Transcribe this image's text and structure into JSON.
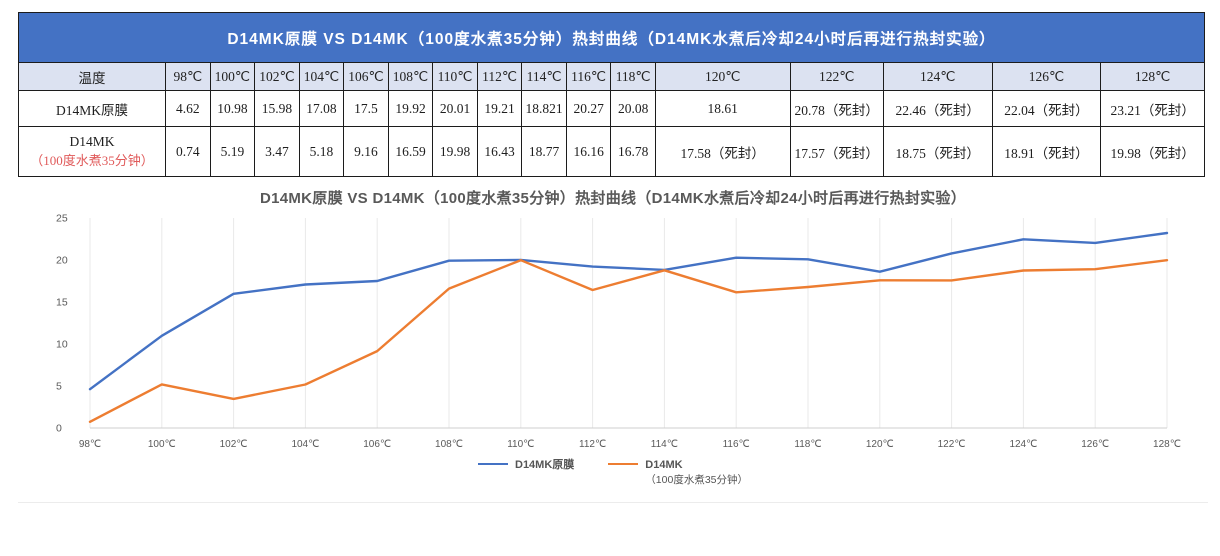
{
  "table": {
    "title": "D14MK原膜 VS D14MK（100度水煮35分钟）热封曲线（D14MK水煮后冷却24小时后再进行热封实验）",
    "header": [
      "温度",
      "98℃",
      "100℃",
      "102℃",
      "104℃",
      "106℃",
      "108℃",
      "110℃",
      "112℃",
      "114℃",
      "116℃",
      "118℃",
      "120℃",
      "122℃",
      "124℃",
      "126℃",
      "128℃"
    ],
    "rows": [
      {
        "label_line1": "D14MK原膜",
        "label_line2": "",
        "values": [
          "4.62",
          "10.98",
          "15.98",
          "17.08",
          "17.5",
          "19.92",
          "20.01",
          "19.21",
          "18.821",
          "20.27",
          "20.08",
          "18.61",
          "20.78（死封）",
          "22.46（死封）",
          "22.04（死封）",
          "23.21（死封）"
        ],
        "red_from": 12
      },
      {
        "label_line1": "D14MK",
        "label_line2": "（100度水煮35分钟）",
        "values": [
          "0.74",
          "5.19",
          "3.47",
          "5.18",
          "9.16",
          "16.59",
          "19.98",
          "16.43",
          "18.77",
          "16.16",
          "16.78",
          "17.58（死封）",
          "17.57（死封）",
          "18.75（死封）",
          "18.91（死封）",
          "19.98（死封）"
        ],
        "red_from": 11
      }
    ]
  },
  "chart_data": {
    "type": "line",
    "title": "D14MK原膜 VS D14MK（100度水煮35分钟）热封曲线（D14MK水煮后冷却24小时后再进行热封实验）",
    "categories": [
      "98℃",
      "100℃",
      "102℃",
      "104℃",
      "106℃",
      "108℃",
      "110℃",
      "112℃",
      "114℃",
      "116℃",
      "118℃",
      "120℃",
      "122℃",
      "124℃",
      "126℃",
      "128℃"
    ],
    "series": [
      {
        "name": "D14MK原膜",
        "legend_lines": [
          "D14MK原膜"
        ],
        "color": "#4472C4",
        "values": [
          4.62,
          10.98,
          15.98,
          17.08,
          17.5,
          19.92,
          20.01,
          19.21,
          18.821,
          20.27,
          20.08,
          18.61,
          20.78,
          22.46,
          22.04,
          23.21
        ]
      },
      {
        "name": "D14MK（100度水煮35分钟）",
        "legend_lines": [
          "D14MK",
          "（100度水煮35分钟）"
        ],
        "color": "#ED7D31",
        "values": [
          0.74,
          5.19,
          3.47,
          5.18,
          9.16,
          16.59,
          19.98,
          16.43,
          18.77,
          16.16,
          16.78,
          17.58,
          17.57,
          18.75,
          18.91,
          19.98
        ]
      }
    ],
    "xlabel": "",
    "ylabel": "",
    "ylim": [
      0,
      25
    ],
    "yticks": [
      0,
      5,
      10,
      15,
      20,
      25
    ],
    "grid": "vertical",
    "legend_position": "bottom"
  },
  "colors": {
    "title_bar": "#4472C4",
    "header_bg": "#dce2f1",
    "dead_seal_red": "#e05a5a",
    "series_blue": "#4472C4",
    "series_orange": "#ED7D31",
    "axis_text": "#595959",
    "gridline": "#e9e9e9"
  }
}
